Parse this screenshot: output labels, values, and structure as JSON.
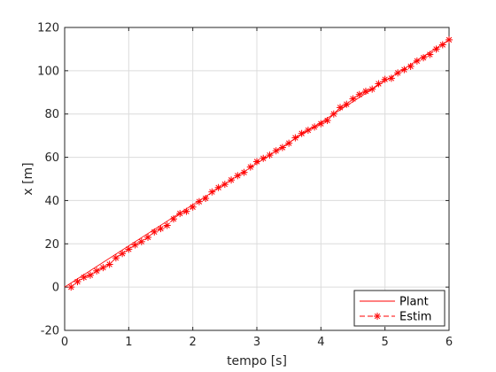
{
  "chart_data": {
    "type": "line",
    "xlabel": "tempo [s]",
    "ylabel": "x [m]",
    "xlim": [
      0,
      6
    ],
    "ylim": [
      -20,
      120
    ],
    "xticks": [
      0,
      1,
      2,
      3,
      4,
      5,
      6
    ],
    "yticks": [
      -20,
      0,
      20,
      40,
      60,
      80,
      100,
      120
    ],
    "grid": true,
    "legend_position": "bottom-right",
    "colors": {
      "series": "#ff0000",
      "axis": "#262626",
      "grid": "#dcdcdc"
    },
    "series": [
      {
        "name": "Plant",
        "style": "solid-line",
        "x": [
          0,
          6
        ],
        "y": [
          0,
          114.3
        ]
      },
      {
        "name": "Estim",
        "style": "dashed-line-asterisk",
        "x": [
          0.1,
          0.2,
          0.3,
          0.4,
          0.5,
          0.6,
          0.7,
          0.8,
          0.9,
          1.0,
          1.1,
          1.2,
          1.3,
          1.4,
          1.5,
          1.6,
          1.7,
          1.8,
          1.9,
          2.0,
          2.1,
          2.2,
          2.3,
          2.4,
          2.5,
          2.6,
          2.7,
          2.8,
          2.9,
          3.0,
          3.1,
          3.2,
          3.3,
          3.4,
          3.5,
          3.6,
          3.7,
          3.8,
          3.9,
          4.0,
          4.1,
          4.2,
          4.3,
          4.4,
          4.5,
          4.6,
          4.7,
          4.8,
          4.9,
          5.0,
          5.1,
          5.2,
          5.3,
          5.4,
          5.5,
          5.6,
          5.7,
          5.8,
          5.9,
          6.0
        ],
        "y": [
          0,
          2.5,
          4.5,
          5.5,
          7.5,
          9,
          10.5,
          13.5,
          15.5,
          17.5,
          19.5,
          21,
          23,
          25.5,
          27,
          28.5,
          31.5,
          34,
          35,
          37,
          39.5,
          41,
          44,
          46,
          47.5,
          49.5,
          51.5,
          53,
          55.5,
          58,
          59.5,
          61,
          63,
          64.5,
          66.5,
          69,
          71,
          72.5,
          74,
          75.5,
          77,
          80,
          83,
          84.5,
          87,
          89,
          90.5,
          91.5,
          94,
          96,
          96.5,
          99,
          100.5,
          102,
          104.5,
          106,
          107.5,
          110,
          112,
          114.3
        ]
      }
    ]
  }
}
